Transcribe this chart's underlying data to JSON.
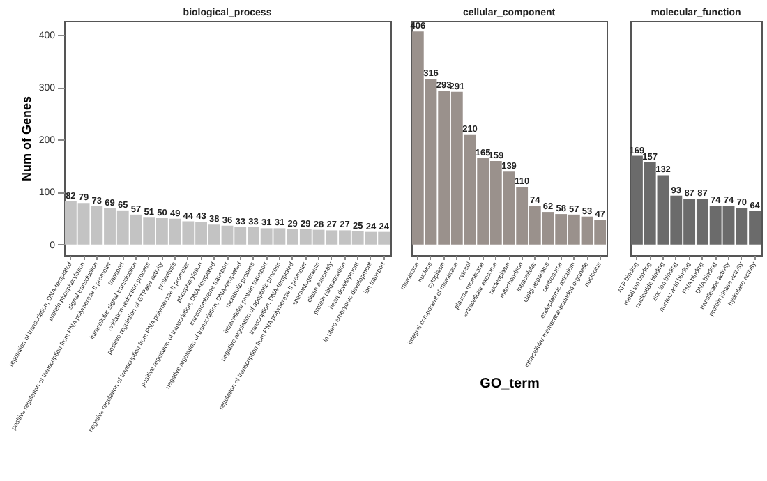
{
  "chart_data": [
    {
      "type": "bar",
      "title": "biological_process",
      "ylabel": "Num of Genes",
      "categories": [
        "regulation of transcription, DNA-templated",
        "protein phosphorylation",
        "signal transduction",
        "positive regulation of transcription from RNA polymerase II promoter",
        "transport",
        "intracellular signal transduction",
        "oxidation-reduction process",
        "positive regulation of GTPase activity",
        "proteolysis",
        "negative regulation of transcription from RNA polymerase II promoter",
        "phosphorylation",
        "positive regulation of transcription, DNA-templated",
        "transmembrane transport",
        "negative regulation of transcription, DNA-templated",
        "metabolic process",
        "intracellular protein transport",
        "negative regulation of apoptotic process",
        "transcription, DNA-templated",
        "regulation of transcription from RNA polymerase II promoter",
        "spermatogenesis",
        "cilium assembly",
        "protein ubiquitination",
        "heart development",
        "in utero embryonic development",
        "ion transport"
      ],
      "values": [
        82,
        79,
        73,
        69,
        65,
        57,
        51,
        50,
        49,
        44,
        43,
        38,
        36,
        33,
        33,
        31,
        31,
        29,
        29,
        28,
        27,
        27,
        25,
        24,
        24
      ],
      "color": "#c3c3c3",
      "ylim": [
        -20.3,
        426.3
      ],
      "yticks": [
        0,
        100,
        200,
        300,
        400
      ],
      "data_labels": true
    },
    {
      "type": "bar",
      "title": "cellular_component",
      "xlabel": "GO_term",
      "categories": [
        "membrane",
        "nucleus",
        "cytoplasm",
        "integral component of membrane",
        "cytosol",
        "plasma membrane",
        "extracellular exosome",
        "nucleoplasm",
        "mitochondrion",
        "intracellular",
        "Golgi apparatus",
        "centrosome",
        "endoplasmic reticulum",
        "intracellular membrane-bounded organelle",
        "nucleolus"
      ],
      "values": [
        406,
        316,
        293,
        291,
        210,
        165,
        159,
        139,
        110,
        74,
        62,
        58,
        57,
        53,
        47
      ],
      "color": "#9a918c",
      "ylim": [
        -20.3,
        426.3
      ],
      "yticks": [
        0,
        100,
        200,
        300,
        400
      ],
      "data_labels": true,
      "tick_labels": "x"
    },
    {
      "type": "bar",
      "title": "molecular_function",
      "categories": [
        "ATP binding",
        "metal ion binding",
        "nucleotide binding",
        "zinc ion binding",
        "nucleic acid binding",
        "RNA binding",
        "DNA binding",
        "transferase activity",
        "protein kinase activity",
        "hydrolase activity"
      ],
      "values": [
        169,
        157,
        132,
        93,
        87,
        87,
        74,
        74,
        70,
        64
      ],
      "color": "#6b6b6b",
      "ylim": [
        -20.3,
        426.3
      ],
      "yticks": [
        0,
        100,
        200,
        300,
        400
      ],
      "data_labels": true,
      "tick_labels": "x"
    }
  ]
}
